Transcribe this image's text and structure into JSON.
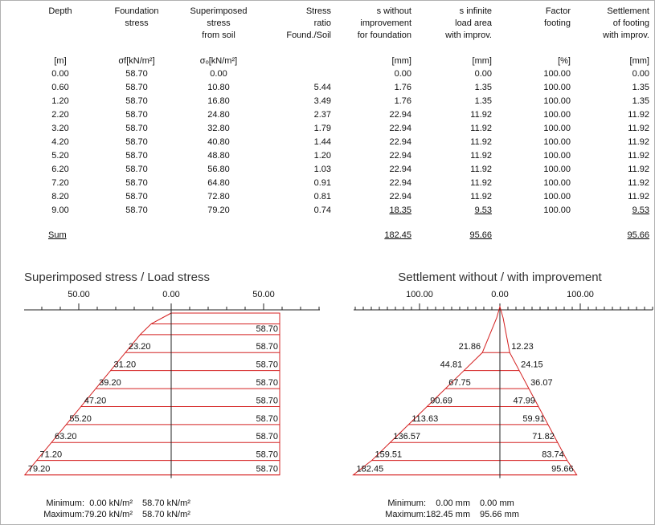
{
  "table": {
    "columns": [
      {
        "header": [
          "Depth"
        ],
        "unit": "[m]"
      },
      {
        "header": [
          "Foundation",
          "stress"
        ],
        "unit": "σf[kN/m²]"
      },
      {
        "header": [
          "Superimposed",
          "stress",
          "from soil"
        ],
        "unit": "σₒ[kN/m²]"
      },
      {
        "header": [
          "Stress",
          "ratio",
          "Found./Soil"
        ]
      },
      {
        "header": [
          "s without",
          "improvement",
          "for foundation"
        ],
        "unit": "[mm]"
      },
      {
        "header": [
          "s infinite",
          "load area",
          "with improv."
        ],
        "unit": "[mm]"
      },
      {
        "header": [
          "Factor",
          "footing"
        ],
        "unit": "[%]"
      },
      {
        "header": [
          "Settlement",
          "of footing",
          "with improv."
        ],
        "unit": "[mm]"
      }
    ],
    "rows": [
      [
        "0.00",
        "58.70",
        "0.00",
        null,
        "0.00",
        "0.00",
        "100.00",
        "0.00"
      ],
      [
        "0.60",
        "58.70",
        "10.80",
        "5.44",
        "1.76",
        "1.35",
        "100.00",
        "1.35"
      ],
      [
        "1.20",
        "58.70",
        "16.80",
        "3.49",
        "1.76",
        "1.35",
        "100.00",
        "1.35"
      ],
      [
        "2.20",
        "58.70",
        "24.80",
        "2.37",
        "22.94",
        "11.92",
        "100.00",
        "11.92"
      ],
      [
        "3.20",
        "58.70",
        "32.80",
        "1.79",
        "22.94",
        "11.92",
        "100.00",
        "11.92"
      ],
      [
        "4.20",
        "58.70",
        "40.80",
        "1.44",
        "22.94",
        "11.92",
        "100.00",
        "11.92"
      ],
      [
        "5.20",
        "58.70",
        "48.80",
        "1.20",
        "22.94",
        "11.92",
        "100.00",
        "11.92"
      ],
      [
        "6.20",
        "58.70",
        "56.80",
        "1.03",
        "22.94",
        "11.92",
        "100.00",
        "11.92"
      ],
      [
        "7.20",
        "58.70",
        "64.80",
        "0.91",
        "22.94",
        "11.92",
        "100.00",
        "11.92"
      ],
      [
        "8.20",
        "58.70",
        "72.80",
        "0.81",
        "22.94",
        "11.92",
        "100.00",
        "11.92"
      ],
      [
        "9.00",
        "58.70",
        "79.20",
        "0.74",
        "18.35",
        "9.53",
        "100.00",
        "9.53"
      ]
    ],
    "sum": {
      "label": "Sum",
      "cells": [
        null,
        null,
        null,
        null,
        "182.45",
        "95.66",
        null,
        "95.66"
      ]
    }
  },
  "stress_diagram": {
    "title": "Superimposed stress  / Load stress",
    "axis_ticks": [
      "50.00",
      "0.00",
      "50.00"
    ],
    "left_labels": [
      "23.20",
      "31.20",
      "39.20",
      "47.20",
      "55.20",
      "63.20",
      "71.20",
      "79.20"
    ],
    "right_labels": [
      "58.70",
      "58.70",
      "58.70",
      "58.70",
      "58.70",
      "58.70",
      "58.70",
      "58.70",
      "58.70"
    ],
    "minimum": {
      "label": "Minimum:",
      "left": "0.00 kN/m²",
      "right": "58.70 kN/m²"
    },
    "maximum": {
      "label": "Maximum:",
      "left": "79.20 kN/m²",
      "right": "58.70 kN/m²"
    }
  },
  "settlement_diagram": {
    "title": "Settlement without / with improvement",
    "axis_ticks": [
      "100.00",
      "0.00",
      "100.00"
    ],
    "left_labels": [
      "21.86",
      "44.81",
      "67.75",
      "90.69",
      "113.63",
      "136.57",
      "159.51",
      "182.45"
    ],
    "right_labels": [
      "12.23",
      "24.15",
      "36.07",
      "47.99",
      "59.91",
      "71.82",
      "83.74",
      "95.66"
    ],
    "minimum": {
      "label": "Minimum:",
      "left": "0.00 mm",
      "right": "0.00 mm"
    },
    "maximum": {
      "label": "Maximum:",
      "left": "182.45 mm",
      "right": "95.66 mm"
    }
  }
}
